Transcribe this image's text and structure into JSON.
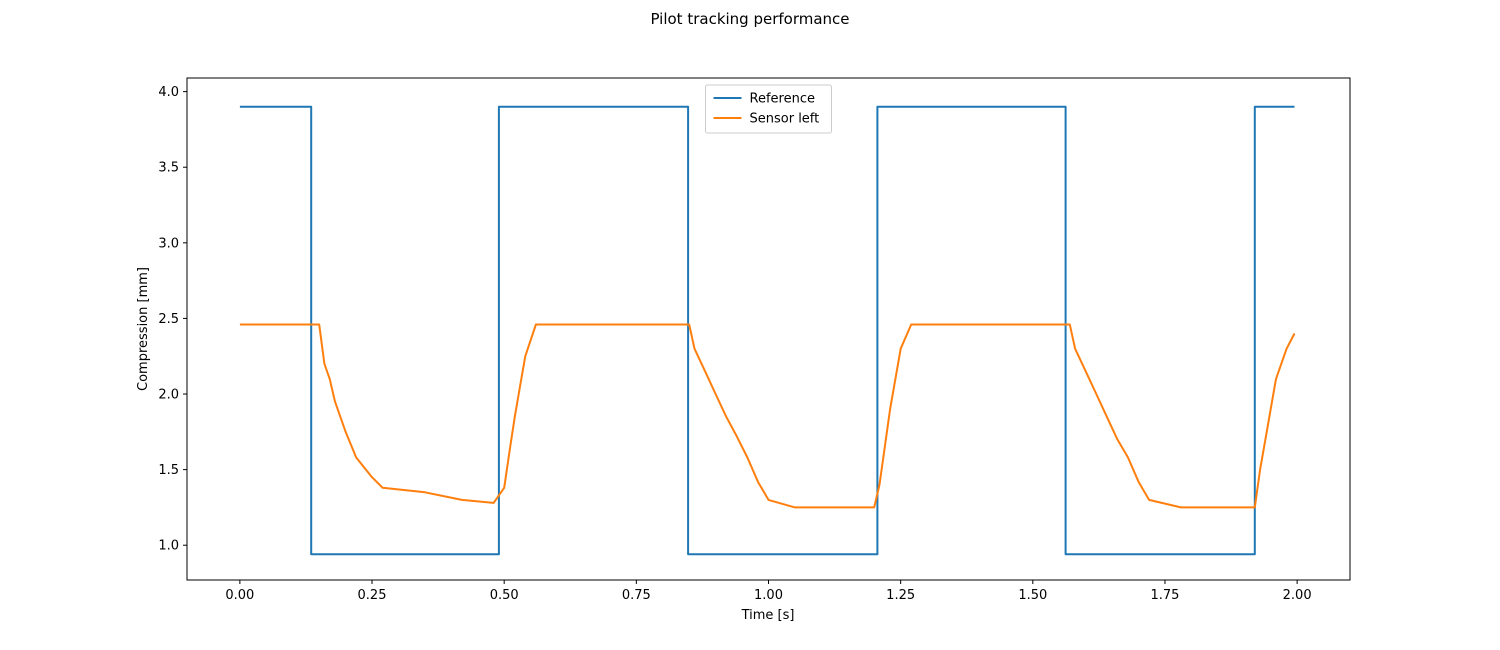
{
  "chart_data": {
    "type": "line",
    "title": "Pilot tracking performance",
    "xlabel": "Time [s]",
    "ylabel": "Compression [mm]",
    "xlim": [
      -0.1,
      2.1
    ],
    "ylim": [
      0.77,
      4.09
    ],
    "xticks": [
      "0.00",
      "0.25",
      "0.50",
      "0.75",
      "1.00",
      "1.25",
      "1.50",
      "1.75",
      "2.00"
    ],
    "yticks": [
      "1.0",
      "1.5",
      "2.0",
      "2.5",
      "3.0",
      "3.5",
      "4.0"
    ],
    "grid": false,
    "legend": "upper center",
    "series": [
      {
        "name": "Reference",
        "color": "#1f77b4",
        "x": [
          0.0,
          0.135,
          0.135,
          0.49,
          0.49,
          0.848,
          0.848,
          1.206,
          1.206,
          1.562,
          1.562,
          1.92,
          1.92,
          1.995
        ],
        "y": [
          3.9,
          3.9,
          0.94,
          0.94,
          3.9,
          3.9,
          0.94,
          0.94,
          3.9,
          3.9,
          0.94,
          0.94,
          3.9,
          3.9
        ]
      },
      {
        "name": "Sensor left",
        "color": "#ff7f0e",
        "x": [
          0.0,
          0.15,
          0.16,
          0.17,
          0.18,
          0.19,
          0.2,
          0.22,
          0.25,
          0.27,
          0.35,
          0.42,
          0.48,
          0.5,
          0.51,
          0.52,
          0.53,
          0.54,
          0.56,
          0.85,
          0.86,
          0.88,
          0.9,
          0.92,
          0.94,
          0.96,
          0.98,
          1.0,
          1.05,
          1.15,
          1.2,
          1.21,
          1.22,
          1.23,
          1.24,
          1.25,
          1.27,
          1.57,
          1.58,
          1.6,
          1.62,
          1.64,
          1.66,
          1.68,
          1.7,
          1.72,
          1.78,
          1.85,
          1.92,
          1.93,
          1.94,
          1.95,
          1.96,
          1.98,
          1.995
        ],
        "y": [
          2.46,
          2.46,
          2.2,
          2.1,
          1.95,
          1.85,
          1.75,
          1.58,
          1.45,
          1.38,
          1.35,
          1.3,
          1.28,
          1.38,
          1.62,
          1.85,
          2.05,
          2.25,
          2.46,
          2.46,
          2.3,
          2.15,
          2.0,
          1.85,
          1.72,
          1.58,
          1.42,
          1.3,
          1.25,
          1.25,
          1.25,
          1.4,
          1.65,
          1.9,
          2.1,
          2.3,
          2.46,
          2.46,
          2.3,
          2.15,
          2.0,
          1.85,
          1.7,
          1.58,
          1.42,
          1.3,
          1.25,
          1.25,
          1.25,
          1.5,
          1.7,
          1.9,
          2.1,
          2.3,
          2.4
        ]
      }
    ]
  }
}
